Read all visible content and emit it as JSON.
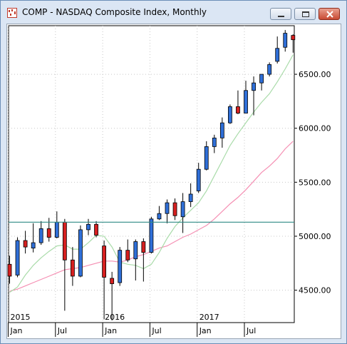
{
  "window": {
    "title": "COMP - NASDAQ Composite Index, Monthly",
    "controls": {
      "minimize": "minimize",
      "maximize": "maximize",
      "close": "close"
    }
  },
  "colors": {
    "up": "#2f6fd8",
    "down": "#d62020",
    "ma_fast": "#a9dba9",
    "ma_slow": "#f58fb3",
    "hline": "#2f8a86"
  },
  "chart_data": {
    "type": "candlestick",
    "title": "",
    "ylim": [
      4200,
      6950
    ],
    "y_ticks": [
      "4500.00",
      "5000.00",
      "5500.00",
      "6000.00",
      "6500.00"
    ],
    "y_tick_values": [
      4500,
      5000,
      5500,
      6000,
      6500
    ],
    "x_month_labels": [
      "Jan",
      "Jul",
      "Jan",
      "Jul",
      "Jan",
      "Jul"
    ],
    "x_year_labels": [
      "2015",
      "2016",
      "2017"
    ],
    "horizontal_line": 5130,
    "candles": [
      {
        "month": "2015-01",
        "o": 4740,
        "h": 4820,
        "l": 4560,
        "c": 4630
      },
      {
        "month": "2015-02",
        "o": 4640,
        "h": 4990,
        "l": 4620,
        "c": 4960
      },
      {
        "month": "2015-03",
        "o": 4960,
        "h": 5050,
        "l": 4840,
        "c": 4900
      },
      {
        "month": "2015-04",
        "o": 4890,
        "h": 5120,
        "l": 4850,
        "c": 4940
      },
      {
        "month": "2015-05",
        "o": 4940,
        "h": 5140,
        "l": 4920,
        "c": 5070
      },
      {
        "month": "2015-06",
        "o": 5070,
        "h": 5170,
        "l": 4950,
        "c": 4990
      },
      {
        "month": "2015-07",
        "o": 4990,
        "h": 5230,
        "l": 4980,
        "c": 5130
      },
      {
        "month": "2015-08",
        "o": 5130,
        "h": 5160,
        "l": 4310,
        "c": 4780
      },
      {
        "month": "2015-09",
        "o": 4780,
        "h": 4900,
        "l": 4540,
        "c": 4630
      },
      {
        "month": "2015-10",
        "o": 4630,
        "h": 5100,
        "l": 4620,
        "c": 5060
      },
      {
        "month": "2015-11",
        "o": 5060,
        "h": 5160,
        "l": 5010,
        "c": 5110
      },
      {
        "month": "2015-12",
        "o": 5110,
        "h": 5140,
        "l": 4990,
        "c": 5010
      },
      {
        "month": "2016-01",
        "o": 4910,
        "h": 4960,
        "l": 4230,
        "c": 4620
      },
      {
        "month": "2016-02",
        "o": 4610,
        "h": 4670,
        "l": 4220,
        "c": 4560
      },
      {
        "month": "2016-03",
        "o": 4570,
        "h": 4900,
        "l": 4540,
        "c": 4870
      },
      {
        "month": "2016-04",
        "o": 4870,
        "h": 4970,
        "l": 4760,
        "c": 4780
      },
      {
        "month": "2016-05",
        "o": 4790,
        "h": 4970,
        "l": 4590,
        "c": 4950
      },
      {
        "month": "2016-06",
        "o": 4950,
        "h": 4980,
        "l": 4580,
        "c": 4850
      },
      {
        "month": "2016-07",
        "o": 4850,
        "h": 5180,
        "l": 4840,
        "c": 5160
      },
      {
        "month": "2016-08",
        "o": 5160,
        "h": 5280,
        "l": 5150,
        "c": 5210
      },
      {
        "month": "2016-09",
        "o": 5210,
        "h": 5340,
        "l": 5120,
        "c": 5310
      },
      {
        "month": "2016-10",
        "o": 5310,
        "h": 5350,
        "l": 5150,
        "c": 5190
      },
      {
        "month": "2016-11",
        "o": 5180,
        "h": 5400,
        "l": 5030,
        "c": 5320
      },
      {
        "month": "2016-12",
        "o": 5320,
        "h": 5490,
        "l": 5270,
        "c": 5390
      },
      {
        "month": "2017-01",
        "o": 5420,
        "h": 5680,
        "l": 5400,
        "c": 5620
      },
      {
        "month": "2017-02",
        "o": 5620,
        "h": 5880,
        "l": 5610,
        "c": 5830
      },
      {
        "month": "2017-03",
        "o": 5830,
        "h": 5940,
        "l": 5770,
        "c": 5910
      },
      {
        "month": "2017-04",
        "o": 5910,
        "h": 6100,
        "l": 5820,
        "c": 6050
      },
      {
        "month": "2017-05",
        "o": 6050,
        "h": 6220,
        "l": 6040,
        "c": 6200
      },
      {
        "month": "2017-06",
        "o": 6200,
        "h": 6350,
        "l": 6130,
        "c": 6140
      },
      {
        "month": "2017-07",
        "o": 6140,
        "h": 6440,
        "l": 6140,
        "c": 6350
      },
      {
        "month": "2017-08",
        "o": 6350,
        "h": 6480,
        "l": 6120,
        "c": 6420
      },
      {
        "month": "2017-09",
        "o": 6420,
        "h": 6500,
        "l": 6350,
        "c": 6500
      },
      {
        "month": "2017-10",
        "o": 6500,
        "h": 6610,
        "l": 6480,
        "c": 6590
      },
      {
        "month": "2017-11",
        "o": 6620,
        "h": 6850,
        "l": 6600,
        "c": 6740
      },
      {
        "month": "2017-12",
        "o": 6750,
        "h": 6910,
        "l": 6710,
        "c": 6880
      },
      {
        "month": "2018-01",
        "o": 6860,
        "h": 6870,
        "l": 6700,
        "c": 6820
      }
    ],
    "ma_fast": [
      4480,
      4530,
      4640,
      4730,
      4800,
      4860,
      4910,
      4920,
      4880,
      4880,
      4940,
      5010,
      5000,
      4900,
      4760,
      4740,
      4730,
      4700,
      4740,
      4850,
      4980,
      5090,
      5170,
      5240,
      5310,
      5420,
      5560,
      5700,
      5840,
      5950,
      6050,
      6150,
      6240,
      6320,
      6430,
      6550,
      6680
    ],
    "ma_slow": [
      4490,
      4510,
      4540,
      4570,
      4600,
      4630,
      4660,
      4690,
      4700,
      4710,
      4730,
      4750,
      4770,
      4770,
      4760,
      4780,
      4810,
      4830,
      4860,
      4890,
      4910,
      4950,
      4990,
      5020,
      5060,
      5100,
      5160,
      5230,
      5300,
      5360,
      5430,
      5510,
      5590,
      5650,
      5720,
      5810,
      5880
    ]
  }
}
